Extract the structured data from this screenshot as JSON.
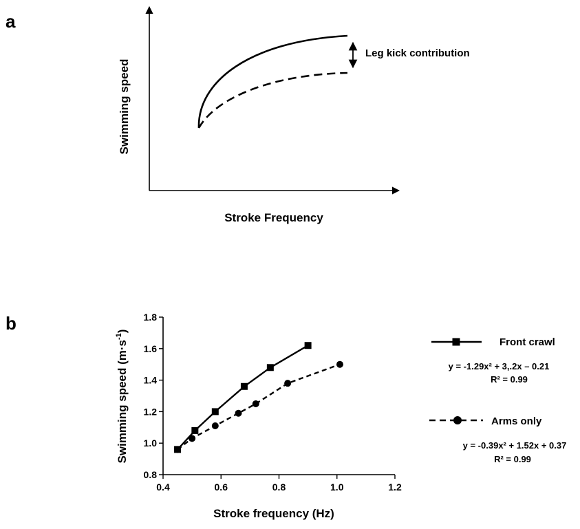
{
  "panels": {
    "a": {
      "label": "a",
      "xlabel": "Stroke Frequency",
      "ylabel": "Swimming speed",
      "annotation": "Leg kick contribution"
    },
    "b": {
      "label": "b",
      "xlabel": "Stroke frequency  (Hz)",
      "ylabel_main": "Swimming speed  (m·s",
      "ylabel_sup": "-1",
      "ylabel_close": ")"
    }
  },
  "chart_data": [
    {
      "panel": "a",
      "type": "line",
      "title": "",
      "xlabel": "Stroke Frequency",
      "ylabel": "Swimming speed",
      "axis_ticks": false,
      "series": [
        {
          "style": "solid",
          "shape": "rising curve that flattens at higher stroke frequency",
          "x": [
            0.1,
            0.2,
            0.35,
            0.5,
            0.65,
            0.8
          ],
          "y": [
            0.3,
            0.58,
            0.7,
            0.76,
            0.79,
            0.8
          ]
        },
        {
          "style": "dashed",
          "shape": "rising curve that flattens, below the solid curve",
          "x": [
            0.1,
            0.2,
            0.35,
            0.5,
            0.65,
            0.8
          ],
          "y": [
            0.3,
            0.45,
            0.53,
            0.58,
            0.61,
            0.62
          ]
        }
      ],
      "annotations": [
        "Leg kick contribution"
      ]
    },
    {
      "panel": "b",
      "type": "line",
      "title": "",
      "xlabel": "Stroke frequency  (Hz)",
      "ylabel": "Swimming speed  (m·s-1)",
      "xlim": [
        0.4,
        1.2
      ],
      "ylim": [
        0.8,
        1.8
      ],
      "xticks": [
        "0.4",
        "0.6",
        "0.8",
        "1.0",
        "1.2"
      ],
      "yticks": [
        "0.8",
        "1.0",
        "1.2",
        "1.4",
        "1.6",
        "1.8"
      ],
      "grid": false,
      "legend_position": "right",
      "series": [
        {
          "name": "Front crawl",
          "marker": "square",
          "line": "solid",
          "x": [
            0.45,
            0.51,
            0.58,
            0.68,
            0.77,
            0.9
          ],
          "y": [
            0.96,
            1.08,
            1.2,
            1.36,
            1.48,
            1.62
          ],
          "equation": "y = -1.29x² + 3,.2x – 0.21",
          "r2": "R² = 0.99"
        },
        {
          "name": "Arms only",
          "marker": "circle",
          "line": "dashed",
          "x": [
            0.45,
            0.5,
            0.58,
            0.66,
            0.72,
            0.83,
            1.01
          ],
          "y": [
            0.96,
            1.03,
            1.11,
            1.19,
            1.25,
            1.38,
            1.5
          ],
          "equation": "y = -0.39x² + 1.52x + 0.37",
          "r2": "R² = 0.99"
        }
      ]
    }
  ]
}
